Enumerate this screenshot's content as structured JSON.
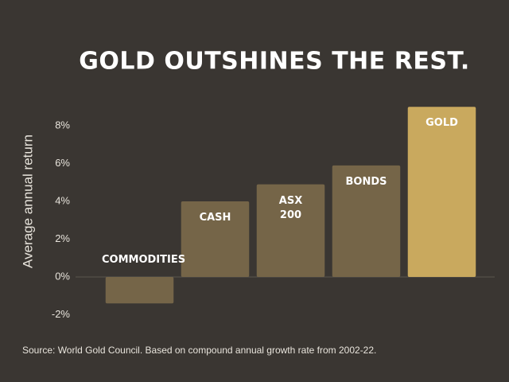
{
  "chart_data": {
    "type": "bar",
    "title": "GOLD OUTSHINES THE REST.",
    "y_label": "Average annual return",
    "source": "Source: World Gold Council. Based on compound annual growth rate from 2002-22.",
    "categories": [
      "COMMODITIES",
      "CASH",
      "ASX 200",
      "BONDS",
      "GOLD"
    ],
    "values": [
      -1.4,
      4.0,
      4.9,
      5.9,
      9.0
    ],
    "colors": [
      "#756548",
      "#756548",
      "#756548",
      "#756548",
      "#c9a95e"
    ],
    "ylim": [
      -2,
      9
    ],
    "yticks": [
      {
        "value": -2,
        "label": "-2%"
      },
      {
        "value": 0,
        "label": "0%"
      },
      {
        "value": 2,
        "label": "2%"
      },
      {
        "value": 4,
        "label": "4%"
      },
      {
        "value": 6,
        "label": "6%"
      },
      {
        "value": 8,
        "label": "8%"
      }
    ],
    "grid": false
  }
}
